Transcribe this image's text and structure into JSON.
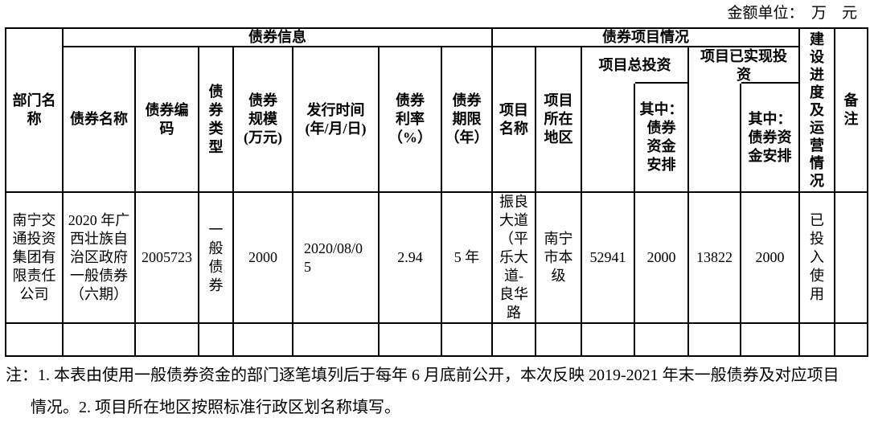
{
  "unit_label": "金额单位：　万　元",
  "table": {
    "headers": {
      "dept": "部门名\n称",
      "bond_info_group": "债券信息",
      "project_group": "债券项目情况",
      "progress": "建\n设\n进\n度\n及\n运\n营\n情\n况",
      "remark": "备\n注",
      "bond_name": "债券名称",
      "bond_code": "债券编\n码",
      "bond_type": "债\n券\n类\n型",
      "bond_scale": "债券\n规模\n(万元)",
      "issue_date": "发行时间\n(年/月/日)",
      "bond_rate": "债券\n利率\n（%）",
      "bond_term": "债券\n期限\n（年）",
      "project_name": "项目\n名称",
      "project_area": "项目\n所在\n地区",
      "total_investment": "项目总投资",
      "total_investment_sub": "其中：\n债券\n资金\n安排",
      "realized_investment": "项目已实现投\n资",
      "realized_investment_sub": "其中：\n债券资\n金安排"
    },
    "rows": [
      {
        "dept": "南宁交\n通投资\n集团有\n限责任\n公司",
        "bond_name": "2020 年广\n西壮族自\n治区政府\n一般债券\n（六期）",
        "bond_code": "2005723",
        "bond_type": "一\n般\n债\n券",
        "bond_scale": "2000",
        "issue_date": "2020/08/0\n5",
        "bond_rate": "2.94",
        "bond_term": "5 年",
        "project_name": "振良\n大道\n（平\n乐大\n道-\n良华\n路",
        "project_area": "南宁\n市本\n级",
        "total_investment": "52941",
        "total_investment_sub": "2000",
        "realized_investment": "13822",
        "realized_investment_sub": "2000",
        "progress": "已\n投\n入\n使\n用",
        "remark": ""
      }
    ]
  },
  "notes": {
    "text": "注：1. 本表由使用一般债券资金的部门逐笔填列后于每年 6 月底前公开，本次反映 2019-2021 年末一般债券及对应项目情况。2. 项目所在地区按照标准行政区划名称填写。"
  }
}
